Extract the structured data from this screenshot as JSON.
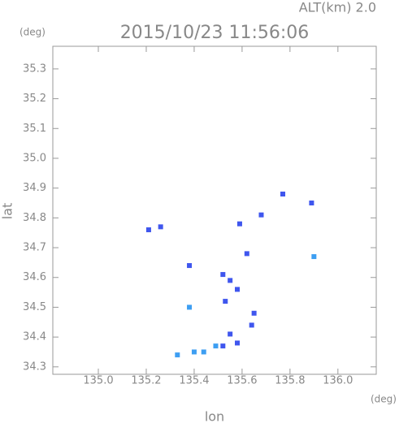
{
  "chart_data": {
    "type": "scatter",
    "title": "2015/10/23 11:56:06",
    "subtitle": "ALT(km) 2.0",
    "x_label": "lon",
    "y_label": "lat",
    "x_unit": "(deg)",
    "y_unit": "(deg)",
    "xlim": [
      134.81,
      136.16
    ],
    "ylim": [
      34.275,
      35.376
    ],
    "xticks": [
      {
        "value": 135,
        "label": "135.0"
      },
      135.2,
      135.4,
      135.6,
      135.8,
      {
        "value": 136,
        "label": "136.0"
      }
    ],
    "yticks": [
      34.3,
      34.4,
      34.5,
      34.6,
      34.7,
      34.8,
      34.9,
      {
        "value": 35,
        "label": "35.0"
      },
      35.1,
      35.2,
      35.3
    ],
    "series": [
      {
        "color": "#3f56ee",
        "x": [
          135.21,
          135.26,
          135.77,
          135.89,
          135.59,
          135.68,
          135.38,
          135.62,
          135.52,
          135.55,
          135.58,
          135.53,
          135.65,
          135.64,
          135.55,
          135.52,
          135.58
        ],
        "values": [
          34.76,
          34.77,
          34.88,
          34.85,
          34.78,
          34.81,
          34.64,
          34.68,
          34.61,
          34.59,
          34.56,
          34.52,
          34.48,
          34.44,
          34.41,
          34.37,
          34.38
        ]
      },
      {
        "color": "#3d9ef2",
        "x": [
          135.9,
          135.38,
          135.49,
          135.4,
          135.33,
          135.44
        ],
        "values": [
          34.67,
          34.5,
          34.37,
          34.35,
          34.34,
          34.35
        ]
      }
    ]
  }
}
